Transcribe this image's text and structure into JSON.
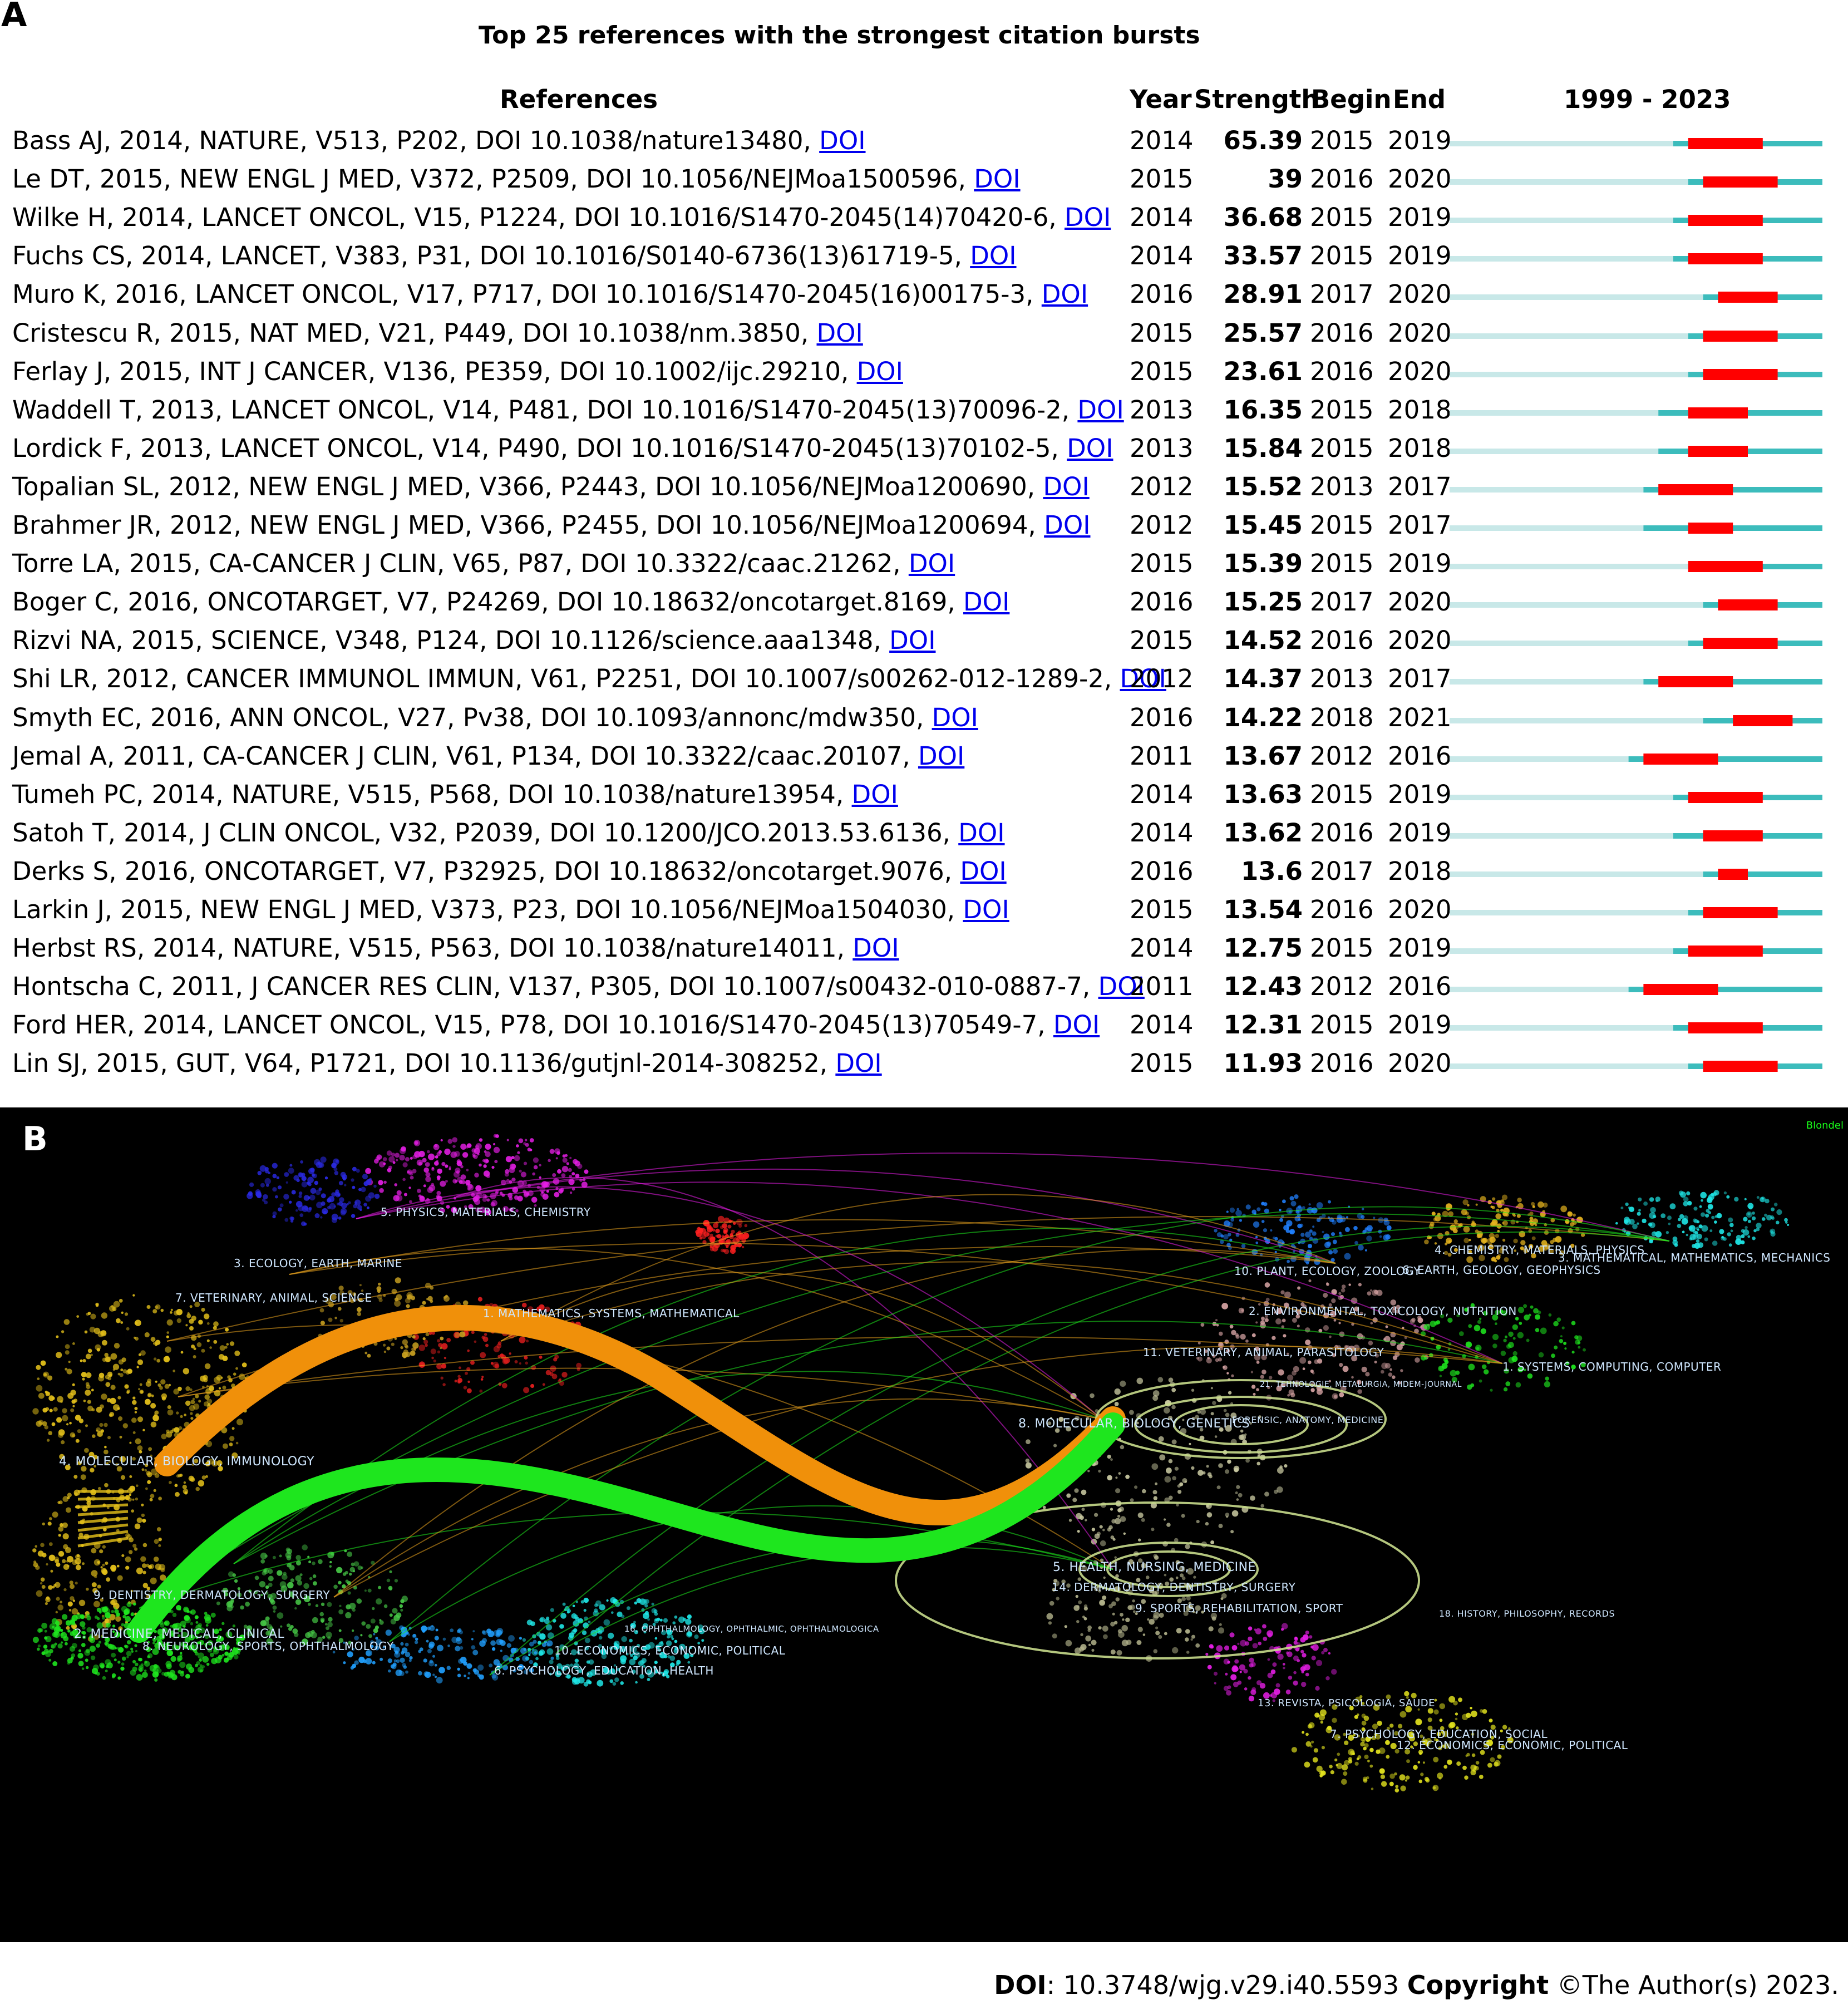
{
  "panel_a_label": "A",
  "panel_b_label": "B",
  "chart_data": [
    {
      "type": "table",
      "title": "Top 25 references with the strongest citation bursts",
      "columns": [
        "References",
        "Year",
        "Strength",
        "Begin",
        "End",
        "1999 - 2023"
      ],
      "range": [
        1999,
        2023
      ],
      "colors": {
        "outside": "#c8e8e8",
        "published": "#3cbcbc",
        "burst": "#ff0000"
      },
      "rows": [
        {
          "ref": "Bass AJ, 2014, NATURE, V513, P202, DOI 10.1038/nature13480,",
          "doi": "DOI",
          "year": 2014,
          "strength": "65.39",
          "begin": 2015,
          "end": 2019
        },
        {
          "ref": "Le DT, 2015, NEW ENGL J MED, V372, P2509, DOI 10.1056/NEJMoa1500596,",
          "doi": "DOI",
          "year": 2015,
          "strength": "39",
          "begin": 2016,
          "end": 2020
        },
        {
          "ref": "Wilke H, 2014, LANCET ONCOL, V15, P1224, DOI 10.1016/S1470-2045(14)70420-6,",
          "doi": "DOI",
          "year": 2014,
          "strength": "36.68",
          "begin": 2015,
          "end": 2019
        },
        {
          "ref": "Fuchs CS, 2014, LANCET, V383, P31, DOI 10.1016/S0140-6736(13)61719-5,",
          "doi": "DOI",
          "year": 2014,
          "strength": "33.57",
          "begin": 2015,
          "end": 2019
        },
        {
          "ref": "Muro K, 2016, LANCET ONCOL, V17, P717, DOI 10.1016/S1470-2045(16)00175-3,",
          "doi": "DOI",
          "year": 2016,
          "strength": "28.91",
          "begin": 2017,
          "end": 2020
        },
        {
          "ref": "Cristescu R, 2015, NAT MED, V21, P449, DOI 10.1038/nm.3850,",
          "doi": "DOI",
          "year": 2015,
          "strength": "25.57",
          "begin": 2016,
          "end": 2020
        },
        {
          "ref": "Ferlay J, 2015, INT J CANCER, V136, PE359, DOI 10.1002/ijc.29210,",
          "doi": "DOI",
          "year": 2015,
          "strength": "23.61",
          "begin": 2016,
          "end": 2020
        },
        {
          "ref": "Waddell T, 2013, LANCET ONCOL, V14, P481, DOI 10.1016/S1470-2045(13)70096-2,",
          "doi": "DOI",
          "year": 2013,
          "strength": "16.35",
          "begin": 2015,
          "end": 2018
        },
        {
          "ref": "Lordick F, 2013, LANCET ONCOL, V14, P490, DOI 10.1016/S1470-2045(13)70102-5,",
          "doi": "DOI",
          "year": 2013,
          "strength": "15.84",
          "begin": 2015,
          "end": 2018
        },
        {
          "ref": "Topalian SL, 2012, NEW ENGL J MED, V366, P2443, DOI 10.1056/NEJMoa1200690,",
          "doi": "DOI",
          "year": 2012,
          "strength": "15.52",
          "begin": 2013,
          "end": 2017
        },
        {
          "ref": "Brahmer JR, 2012, NEW ENGL J MED, V366, P2455, DOI 10.1056/NEJMoa1200694,",
          "doi": "DOI",
          "year": 2012,
          "strength": "15.45",
          "begin": 2015,
          "end": 2017
        },
        {
          "ref": "Torre LA, 2015, CA-CANCER J CLIN, V65, P87, DOI 10.3322/caac.21262,",
          "doi": "DOI",
          "year": 2015,
          "strength": "15.39",
          "begin": 2015,
          "end": 2019
        },
        {
          "ref": "Boger C, 2016, ONCOTARGET, V7, P24269, DOI 10.18632/oncotarget.8169,",
          "doi": "DOI",
          "year": 2016,
          "strength": "15.25",
          "begin": 2017,
          "end": 2020
        },
        {
          "ref": "Rizvi NA, 2015, SCIENCE, V348, P124, DOI 10.1126/science.aaa1348,",
          "doi": "DOI",
          "year": 2015,
          "strength": "14.52",
          "begin": 2016,
          "end": 2020
        },
        {
          "ref": "Shi LR, 2012, CANCER IMMUNOL IMMUN, V61, P2251, DOI 10.1007/s00262-012-1289-2,",
          "doi": "DOI",
          "year": 2012,
          "strength": "14.37",
          "begin": 2013,
          "end": 2017
        },
        {
          "ref": "Smyth EC, 2016, ANN ONCOL, V27, Pv38, DOI 10.1093/annonc/mdw350,",
          "doi": "DOI",
          "year": 2016,
          "strength": "14.22",
          "begin": 2018,
          "end": 2021
        },
        {
          "ref": "Jemal A, 2011, CA-CANCER J CLIN, V61, P134, DOI 10.3322/caac.20107,",
          "doi": "DOI",
          "year": 2011,
          "strength": "13.67",
          "begin": 2012,
          "end": 2016
        },
        {
          "ref": "Tumeh PC, 2014, NATURE, V515, P568, DOI 10.1038/nature13954,",
          "doi": "DOI",
          "year": 2014,
          "strength": "13.63",
          "begin": 2015,
          "end": 2019
        },
        {
          "ref": "Satoh T, 2014, J CLIN ONCOL, V32, P2039, DOI 10.1200/JCO.2013.53.6136,",
          "doi": "DOI",
          "year": 2014,
          "strength": "13.62",
          "begin": 2016,
          "end": 2019
        },
        {
          "ref": "Derks S, 2016, ONCOTARGET, V7, P32925, DOI 10.18632/oncotarget.9076,",
          "doi": "DOI",
          "year": 2016,
          "strength": "13.6",
          "begin": 2017,
          "end": 2018
        },
        {
          "ref": "Larkin J, 2015, NEW ENGL J MED, V373, P23, DOI 10.1056/NEJMoa1504030,",
          "doi": "DOI",
          "year": 2015,
          "strength": "13.54",
          "begin": 2016,
          "end": 2020
        },
        {
          "ref": "Herbst RS, 2014, NATURE, V515, P563, DOI 10.1038/nature14011,",
          "doi": "DOI",
          "year": 2014,
          "strength": "12.75",
          "begin": 2015,
          "end": 2019
        },
        {
          "ref": "Hontscha C, 2011, J CANCER RES CLIN, V137, P305, DOI 10.1007/s00432-010-0887-7,",
          "doi": "DOI",
          "year": 2011,
          "strength": "12.43",
          "begin": 2012,
          "end": 2016
        },
        {
          "ref": "Ford HER, 2014, LANCET ONCOL, V15, P78, DOI 10.1016/S1470-2045(13)70549-7,",
          "doi": "DOI",
          "year": 2014,
          "strength": "12.31",
          "begin": 2015,
          "end": 2019
        },
        {
          "ref": "Lin SJ, 2015, GUT, V64, P1721, DOI 10.1136/gutjnl-2014-308252,",
          "doi": "DOI",
          "year": 2015,
          "strength": "11.93",
          "begin": 2016,
          "end": 2020
        }
      ]
    },
    {
      "type": "other",
      "description_kind": "dual-map overlay",
      "legend": "Blondel",
      "left_clusters": [
        "5. PHYSICS, MATERIALS, CHEMISTRY",
        "3. ECOLOGY, EARTH, MARINE",
        "7. VETERINARY, ANIMAL, SCIENCE",
        "1. MATHEMATICS, SYSTEMS, MATHEMATICAL",
        "4. MOLECULAR, BIOLOGY, IMMUNOLOGY",
        "9. DENTISTRY, DERMATOLOGY, SURGERY",
        "2. MEDICINE, MEDICAL, CLINICAL",
        "8. NEUROLOGY, SPORTS, OPHTHALMOLOGY",
        "10. ECONOMICS, ECONOMIC, POLITICAL",
        "6. PSYCHOLOGY, EDUCATION, HEALTH"
      ],
      "right_clusters": [
        "4. CHEMISTRY, MATERIALS, PHYSICS",
        "3. MATHEMATICAL, MATHEMATICS, MECHANICS",
        "10. PLANT, ECOLOGY, ZOOLOGY",
        "6. EARTH, GEOLOGY, GEOPHYSICS",
        "2. ENVIRONMENTAL, TOXICOLOGY, NUTRITION",
        "11. VETERINARY, ANIMAL, PARASITOLOGY",
        "1. SYSTEMS, COMPUTING, COMPUTER",
        "21. TEHNOLOGIE, METALURGIA, MIDEM-JOURNAL",
        "8. MOLECULAR, BIOLOGY, GENETICS",
        "FORENSIC, ANATOMY, MEDICINE",
        "5. HEALTH, NURSING, MEDICINE",
        "14. DERMATOLOGY, DENTISTRY, SURGERY",
        "9. SPORTS, REHABILITATION, SPORT",
        "18. HISTORY, PHILOSOPHY, RECORDS",
        "16. OPHTHALMOLOGY, OPHTHALMIC, OPHTHALMOLOGICA",
        "13. REVISTA, PSICOLOGIA, SAUDE",
        "7. PSYCHOLOGY, EDUCATION, SOCIAL",
        "12. ECONOMICS, ECONOMIC, POLITICAL"
      ],
      "paths": [
        {
          "label": "MOLECULAR, BIOLOGY, IMMUNOLOGY → MOLECULAR, BIOLOGY, GENETICS (z=5.0290074, f=21124)",
          "color": "#f0900a"
        },
        {
          "label": "MEDICINE, MEDICAL, CLINICAL → MOLECULAR, BIOLOGY, GENETICS (z=4.33745, f=18376)",
          "color": "#1ee61e"
        }
      ]
    }
  ],
  "footer": {
    "doi_label": "DOI",
    "doi_value": ": 10.3748/wjg.v29.i40.5593",
    "copyright_label": "Copyright",
    "copyright_value": " ©The Author(s) 2023."
  }
}
